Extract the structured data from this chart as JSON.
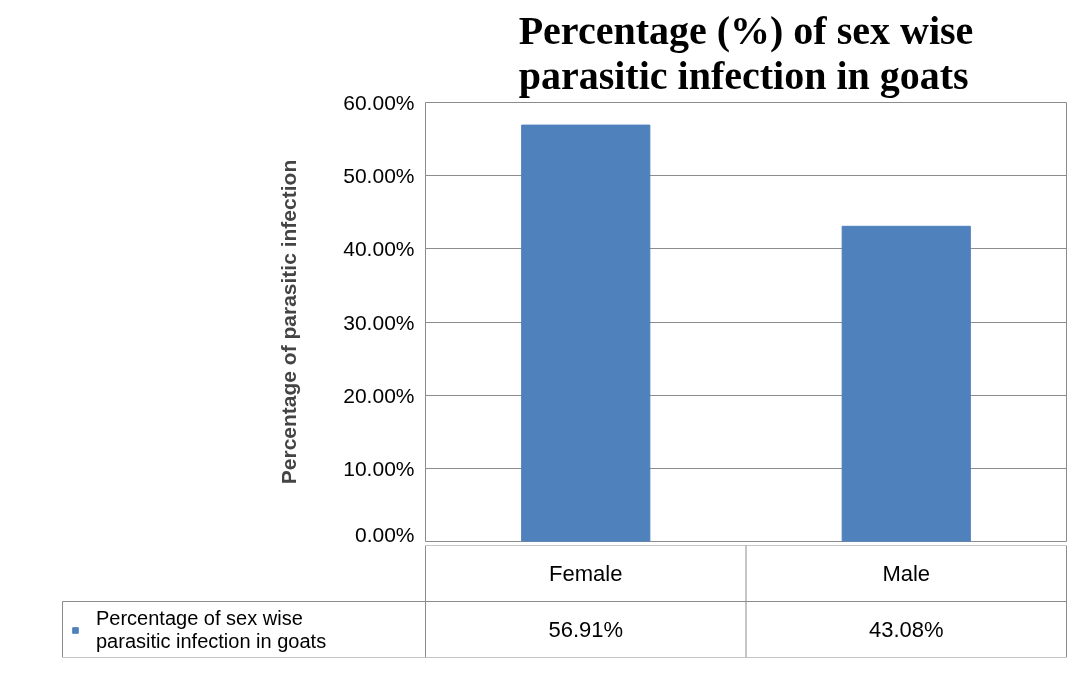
{
  "chart_data": {
    "type": "bar",
    "title": "Percentage (%) of sex wise parasitic infection in goats",
    "ylabel": "Percentage of parasitic infection",
    "categories": [
      "Female",
      "Male"
    ],
    "series": [
      {
        "name": "Percentage of sex wise parasitic infection in goats",
        "color": "#4f81bd",
        "values": [
          56.91,
          43.08
        ],
        "value_labels": [
          "56.91%",
          "43.08%"
        ]
      }
    ],
    "ylim": [
      0,
      60
    ],
    "yticks": [
      {
        "value": 0,
        "label": "0.00%"
      },
      {
        "value": 10,
        "label": "10.00%"
      },
      {
        "value": 20,
        "label": "20.00%"
      },
      {
        "value": 30,
        "label": "30.00%"
      },
      {
        "value": 40,
        "label": "40.00%"
      },
      {
        "value": 50,
        "label": "50.00%"
      },
      {
        "value": 60,
        "label": "60.00%"
      }
    ],
    "grid": "y",
    "legend": "bottom"
  }
}
